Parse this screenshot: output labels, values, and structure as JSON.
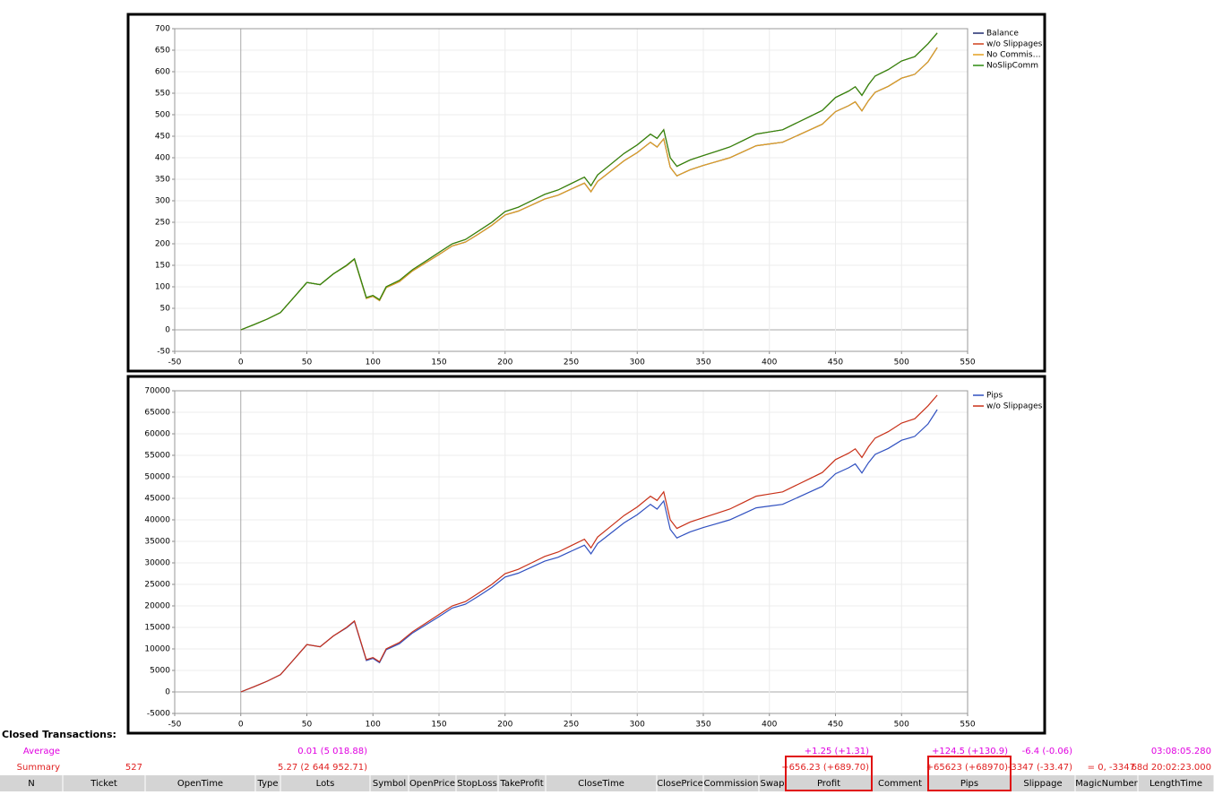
{
  "chart_data": [
    {
      "type": "line",
      "xlim": [
        -50,
        550
      ],
      "xticks": [
        -50,
        0,
        50,
        100,
        150,
        200,
        250,
        300,
        350,
        400,
        450,
        500,
        550
      ],
      "ylim": [
        -50,
        700
      ],
      "yticks": [
        -50,
        0,
        50,
        100,
        150,
        200,
        250,
        300,
        350,
        400,
        450,
        500,
        550,
        600,
        650,
        700
      ],
      "grid": true,
      "x": [
        0,
        10,
        20,
        30,
        40,
        50,
        60,
        70,
        80,
        86,
        95,
        100,
        105,
        110,
        120,
        130,
        140,
        150,
        160,
        170,
        180,
        190,
        200,
        210,
        220,
        230,
        240,
        250,
        260,
        265,
        270,
        280,
        290,
        300,
        310,
        315,
        320,
        325,
        330,
        340,
        350,
        360,
        370,
        380,
        390,
        400,
        410,
        420,
        430,
        440,
        450,
        460,
        465,
        470,
        475,
        480,
        490,
        500,
        510,
        520,
        527
      ],
      "series": [
        {
          "name": "Balance",
          "color": "#1f2a6e",
          "values": [
            0,
            12,
            25,
            40,
            75,
            110,
            105,
            130,
            149,
            164,
            73,
            78,
            68,
            98,
            112,
            137,
            156,
            175,
            195,
            204,
            223,
            243,
            267,
            276,
            290,
            304,
            313,
            327,
            341,
            321,
            345,
            369,
            393,
            412,
            436,
            425,
            444,
            378,
            358,
            372,
            382,
            391,
            400,
            414,
            428,
            432,
            436,
            450,
            464,
            478,
            507,
            521,
            530,
            509,
            533,
            552,
            566,
            585,
            594,
            623,
            656
          ]
        },
        {
          "name": "w/o Slippages",
          "color": "#d0401c",
          "values": [
            0,
            12,
            25,
            40,
            75,
            110,
            105,
            130,
            150,
            165,
            75,
            80,
            70,
            100,
            115,
            140,
            160,
            180,
            200,
            210,
            230,
            250,
            275,
            285,
            300,
            315,
            325,
            340,
            355,
            335,
            360,
            385,
            410,
            430,
            455,
            445,
            465,
            400,
            380,
            395,
            405,
            415,
            425,
            440,
            455,
            460,
            465,
            480,
            495,
            510,
            540,
            555,
            565,
            545,
            570,
            590,
            605,
            625,
            635,
            665,
            690
          ]
        },
        {
          "name": "No Commis…",
          "color": "#e3a020",
          "values": [
            0,
            12,
            25,
            40,
            75,
            110,
            105,
            130,
            149,
            164,
            73,
            78,
            68,
            98,
            112,
            137,
            156,
            175,
            195,
            204,
            223,
            243,
            267,
            276,
            290,
            304,
            313,
            327,
            341,
            321,
            345,
            369,
            393,
            412,
            436,
            425,
            444,
            378,
            358,
            372,
            382,
            391,
            400,
            414,
            428,
            432,
            436,
            450,
            464,
            478,
            507,
            521,
            530,
            509,
            533,
            552,
            566,
            585,
            594,
            623,
            656
          ]
        },
        {
          "name": "NoSlipComm",
          "color": "#2a8a10",
          "values": [
            0,
            12,
            25,
            40,
            75,
            110,
            105,
            130,
            150,
            165,
            75,
            80,
            70,
            100,
            115,
            140,
            160,
            180,
            200,
            210,
            230,
            250,
            275,
            285,
            300,
            315,
            325,
            340,
            355,
            335,
            360,
            385,
            410,
            430,
            455,
            445,
            465,
            400,
            380,
            395,
            405,
            415,
            425,
            440,
            455,
            460,
            465,
            480,
            495,
            510,
            540,
            555,
            565,
            545,
            570,
            590,
            605,
            625,
            635,
            665,
            690
          ]
        }
      ]
    },
    {
      "type": "line",
      "xlim": [
        -50,
        550
      ],
      "xticks": [
        -50,
        0,
        50,
        100,
        150,
        200,
        250,
        300,
        350,
        400,
        450,
        500,
        550
      ],
      "ylim": [
        -5000,
        70000
      ],
      "yticks": [
        -5000,
        0,
        5000,
        10000,
        15000,
        20000,
        25000,
        30000,
        35000,
        40000,
        45000,
        50000,
        55000,
        60000,
        65000,
        70000
      ],
      "grid": true,
      "x": [
        0,
        10,
        20,
        30,
        40,
        50,
        60,
        70,
        80,
        86,
        95,
        100,
        105,
        110,
        120,
        130,
        140,
        150,
        160,
        170,
        180,
        190,
        200,
        210,
        220,
        230,
        240,
        250,
        260,
        265,
        270,
        280,
        290,
        300,
        310,
        315,
        320,
        325,
        330,
        340,
        350,
        360,
        370,
        380,
        390,
        400,
        410,
        420,
        430,
        440,
        450,
        460,
        465,
        470,
        475,
        480,
        490,
        500,
        510,
        520,
        527
      ],
      "series": [
        {
          "name": "Pips",
          "color": "#3050c0",
          "values": [
            0,
            1200,
            2500,
            4000,
            7500,
            11000,
            10500,
            13000,
            14900,
            16400,
            7300,
            7800,
            6800,
            9800,
            11200,
            13700,
            15600,
            17500,
            19500,
            20400,
            22300,
            24300,
            26700,
            27600,
            29000,
            30400,
            31300,
            32700,
            34100,
            32100,
            34500,
            36900,
            39300,
            41200,
            43600,
            42500,
            44400,
            37800,
            35800,
            37200,
            38200,
            39100,
            40000,
            41400,
            42800,
            43200,
            43600,
            45000,
            46400,
            47800,
            50700,
            52100,
            53000,
            50900,
            53300,
            55200,
            56600,
            58500,
            59400,
            62300,
            65623
          ]
        },
        {
          "name": "w/o Slippages",
          "color": "#c83018",
          "values": [
            0,
            1200,
            2500,
            4000,
            7500,
            11000,
            10500,
            13000,
            15000,
            16500,
            7500,
            8000,
            7000,
            10000,
            11500,
            14000,
            16000,
            18000,
            20000,
            21000,
            23000,
            25000,
            27500,
            28500,
            30000,
            31500,
            32500,
            34000,
            35500,
            33500,
            36000,
            38500,
            41000,
            43000,
            45500,
            44500,
            46500,
            40000,
            38000,
            39500,
            40500,
            41500,
            42500,
            44000,
            45500,
            46000,
            46500,
            48000,
            49500,
            51000,
            54000,
            55500,
            56500,
            54500,
            57000,
            59000,
            60500,
            62500,
            63500,
            66500,
            68970
          ]
        }
      ]
    }
  ],
  "table": {
    "title": "Closed Transactions:",
    "columns": [
      "N",
      "Ticket",
      "OpenTime",
      "Type",
      "Lots",
      "Symbol",
      "OpenPrice",
      "StopLoss",
      "TakeProfit",
      "CloseTime",
      "ClosePrice",
      "Commission",
      "Swap",
      "Profit",
      "Comment",
      "Pips",
      "Slippage",
      "MagicNumber",
      "LengthTime"
    ],
    "average": {
      "N": "Average",
      "Lots": "0.01 (5 018.88)",
      "Profit": "+1.25 (+1.31)",
      "Pips": "+124.5 (+130.9)",
      "Slippage": "-6.4 (-0.06)",
      "LengthTime": "03:08:05.280"
    },
    "summary": {
      "N": "Summary",
      "Ticket": "527",
      "Lots": "5.27 (2 644 952.71)",
      "Profit": "+656.23 (+689.70)",
      "Pips": "+65623 (+68970)",
      "Slippage": "-3347 (-33.47)",
      "MagicNumber": "= 0, -3347",
      "LengthTime": "68d 20:02:23.000"
    }
  }
}
